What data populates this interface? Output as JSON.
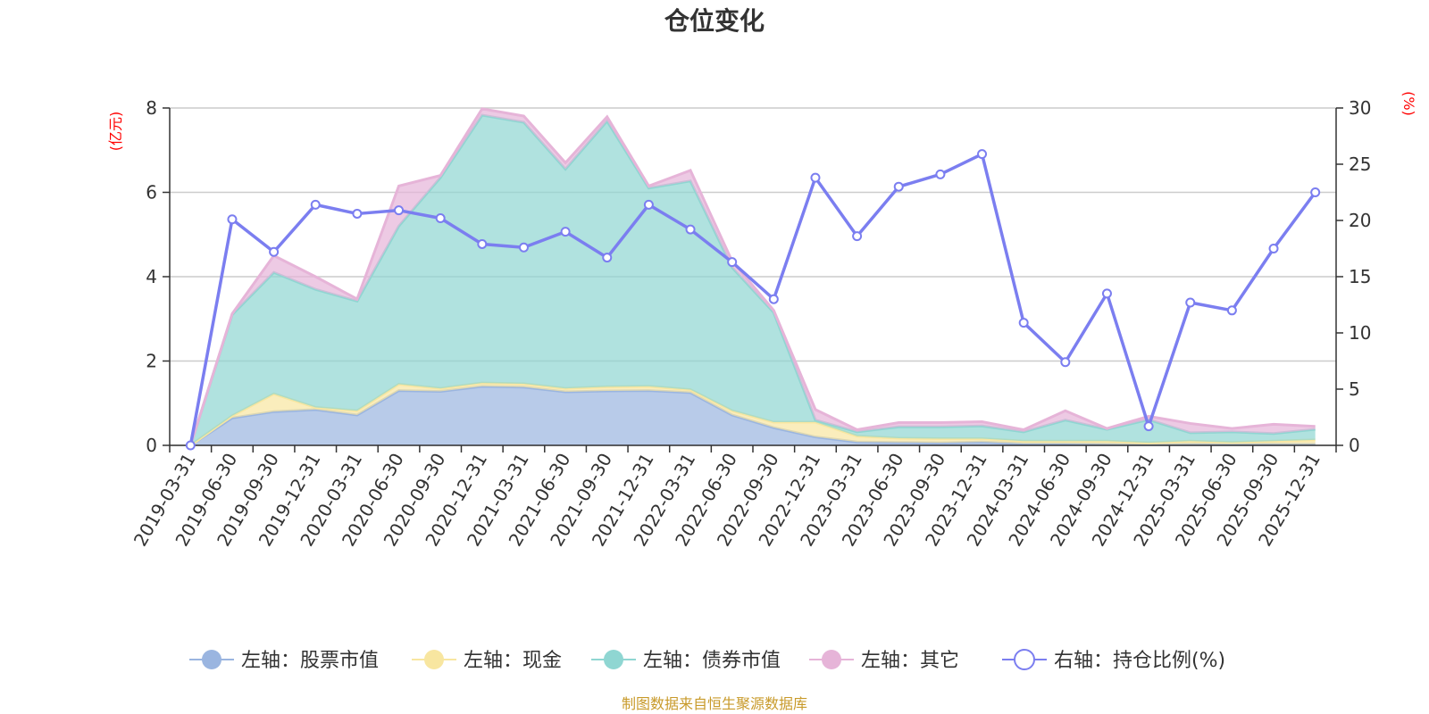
{
  "colors": {
    "stock": "#9ab5e0",
    "cash": "#f8e6a0",
    "bond": "#8fd6d2",
    "other": "#e6b4d8",
    "ratio": "#7b7ef0",
    "unit": "#ff0000",
    "source": "#c89a2a"
  },
  "chart_data": {
    "type": "area",
    "title": "仓位变化",
    "left_unit": "(亿元)",
    "right_unit": "(%)",
    "source_text": "制图数据来自恒生聚源数据库",
    "y_left": {
      "min": 0,
      "max": 8,
      "ticks": [
        "0",
        "2",
        "4",
        "6",
        "8"
      ]
    },
    "y_right": {
      "min": 0,
      "max": 30,
      "ticks": [
        "0",
        "5",
        "10",
        "15",
        "20",
        "25",
        "30"
      ]
    },
    "categories": [
      "2019-03-31",
      "2019-06-30",
      "2019-09-30",
      "2019-12-31",
      "2020-03-31",
      "2020-06-30",
      "2020-09-30",
      "2020-12-31",
      "2021-03-31",
      "2021-06-30",
      "2021-09-30",
      "2021-12-31",
      "2022-03-31",
      "2022-06-30",
      "2022-09-30",
      "2022-12-31",
      "2023-03-31",
      "2023-06-30",
      "2023-09-30",
      "2023-12-31",
      "2024-03-31",
      "2024-06-30",
      "2024-09-30",
      "2024-12-31",
      "2025-03-31",
      "2025-06-30",
      "2025-09-30",
      "2025-12-31"
    ],
    "series": [
      {
        "name": "左轴：股票市值",
        "axis": "left",
        "kind": "area",
        "values": [
          0,
          0.65,
          0.8,
          0.85,
          0.72,
          1.3,
          1.28,
          1.4,
          1.38,
          1.27,
          1.29,
          1.3,
          1.25,
          0.72,
          0.42,
          0.2,
          0.08,
          0.07,
          0.06,
          0.08,
          0.04,
          0.04,
          0.03,
          0.02,
          0.03,
          0.03,
          0.03,
          0.03
        ]
      },
      {
        "name": "左轴：现金",
        "axis": "left",
        "kind": "area",
        "values": [
          0,
          0.05,
          0.42,
          0.05,
          0.1,
          0.15,
          0.07,
          0.08,
          0.08,
          0.08,
          0.1,
          0.1,
          0.07,
          0.1,
          0.13,
          0.35,
          0.14,
          0.1,
          0.1,
          0.08,
          0.06,
          0.06,
          0.07,
          0.04,
          0.07,
          0.04,
          0.07,
          0.1
        ]
      },
      {
        "name": "左轴：债券市值",
        "axis": "left",
        "kind": "area",
        "values": [
          0,
          2.4,
          2.88,
          2.8,
          2.6,
          3.75,
          5.0,
          6.35,
          6.2,
          5.2,
          6.3,
          4.7,
          4.95,
          3.4,
          2.6,
          0.05,
          0.1,
          0.27,
          0.28,
          0.3,
          0.22,
          0.5,
          0.28,
          0.55,
          0.2,
          0.25,
          0.18,
          0.25
        ]
      },
      {
        "name": "左轴：其它",
        "axis": "left",
        "kind": "area",
        "values": [
          0,
          0.02,
          0.4,
          0.3,
          0.05,
          0.95,
          0.05,
          0.15,
          0.15,
          0.15,
          0.1,
          0.05,
          0.25,
          0.15,
          0.05,
          0.25,
          0.05,
          0.1,
          0.1,
          0.1,
          0.05,
          0.22,
          0.02,
          0.08,
          0.22,
          0.08,
          0.22,
          0.07
        ]
      },
      {
        "name": "右轴：持仓比例(%)",
        "axis": "right",
        "kind": "line",
        "values": [
          0,
          20.1,
          17.2,
          21.4,
          20.6,
          20.9,
          20.2,
          17.9,
          17.6,
          19.0,
          16.7,
          21.4,
          19.2,
          16.3,
          13.0,
          23.8,
          18.6,
          23.0,
          24.1,
          25.9,
          10.9,
          7.4,
          13.5,
          1.7,
          12.7,
          12.0,
          17.5,
          22.5
        ]
      }
    ]
  }
}
